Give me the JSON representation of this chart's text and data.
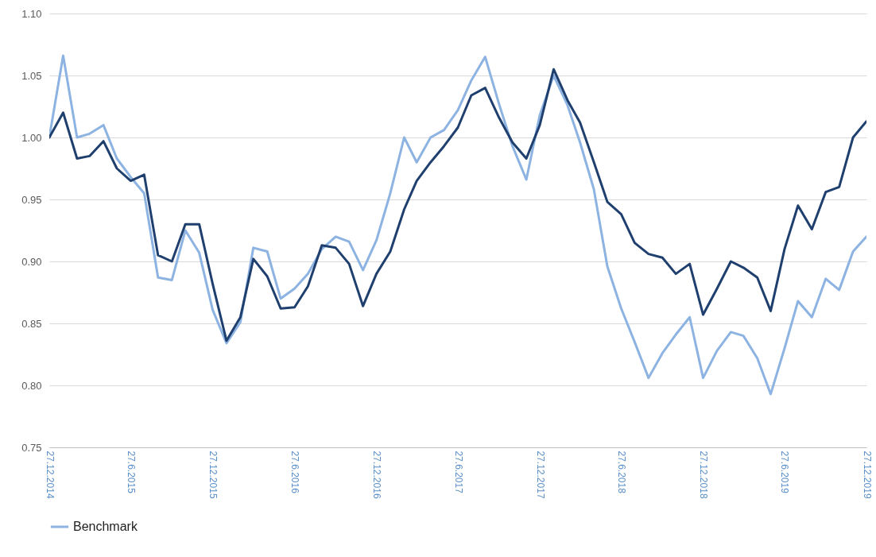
{
  "chart_data": {
    "type": "line",
    "x": [
      "2014-12-27",
      "2015-01-27",
      "2015-02-27",
      "2015-03-27",
      "2015-04-27",
      "2015-05-27",
      "2015-06-27",
      "2015-07-27",
      "2015-08-27",
      "2015-09-27",
      "2015-10-27",
      "2015-11-27",
      "2015-12-27",
      "2016-01-27",
      "2016-02-27",
      "2016-03-27",
      "2016-04-27",
      "2016-05-27",
      "2016-06-27",
      "2016-07-27",
      "2016-08-27",
      "2016-09-27",
      "2016-10-27",
      "2016-11-27",
      "2016-12-27",
      "2017-01-27",
      "2017-02-27",
      "2017-03-27",
      "2017-04-27",
      "2017-05-27",
      "2017-06-27",
      "2017-07-27",
      "2017-08-27",
      "2017-09-27",
      "2017-10-27",
      "2017-11-27",
      "2017-12-27",
      "2018-01-27",
      "2018-02-27",
      "2018-03-27",
      "2018-04-27",
      "2018-05-27",
      "2018-06-27",
      "2018-07-27",
      "2018-08-27",
      "2018-09-27",
      "2018-10-27",
      "2018-11-27",
      "2018-12-27",
      "2019-01-27",
      "2019-02-27",
      "2019-03-27",
      "2019-04-27",
      "2019-05-27",
      "2019-06-27",
      "2019-07-27",
      "2019-08-27",
      "2019-09-27",
      "2019-10-27",
      "2019-11-27",
      "2019-12-27"
    ],
    "series": [
      {
        "name": "Benchmark",
        "color": "#8db3e2",
        "values": [
          1.0,
          1.066,
          1.0,
          1.003,
          1.01,
          0.983,
          0.968,
          0.955,
          0.887,
          0.885,
          0.925,
          0.907,
          0.861,
          0.834,
          0.851,
          0.911,
          0.908,
          0.87,
          0.878,
          0.89,
          0.91,
          0.92,
          0.916,
          0.893,
          0.917,
          0.955,
          1.0,
          0.98,
          1.0,
          1.006,
          1.022,
          1.046,
          1.065,
          1.027,
          0.993,
          0.966,
          1.018,
          1.05,
          1.026,
          0.996,
          0.958,
          0.896,
          0.862,
          0.835,
          0.806,
          0.826,
          0.841,
          0.855,
          0.806,
          0.828,
          0.843,
          0.84,
          0.822,
          0.793,
          0.83,
          0.868,
          0.855,
          0.886,
          0.877,
          0.908,
          0.92
        ]
      },
      {
        "color": "#1f3f6e",
        "values": [
          1.0,
          1.02,
          0.983,
          0.985,
          0.997,
          0.975,
          0.965,
          0.97,
          0.905,
          0.9,
          0.93,
          0.93,
          0.882,
          0.836,
          0.855,
          0.902,
          0.888,
          0.862,
          0.863,
          0.88,
          0.913,
          0.911,
          0.898,
          0.864,
          0.89,
          0.908,
          0.942,
          0.965,
          0.98,
          0.993,
          1.008,
          1.034,
          1.04,
          1.016,
          0.996,
          0.983,
          1.01,
          1.055,
          1.03,
          1.012,
          0.98,
          0.948,
          0.938,
          0.915,
          0.906,
          0.903,
          0.89,
          0.898,
          0.857,
          0.878,
          0.9,
          0.895,
          0.887,
          0.86,
          0.91,
          0.945,
          0.926,
          0.956,
          0.96,
          1.0,
          1.013
        ]
      }
    ],
    "xlim": [
      "2014-12-27",
      "2019-12-27"
    ],
    "xticks": [
      {
        "value": "2014-12-27",
        "label": "27.12.2014"
      },
      {
        "value": "2015-06-27",
        "label": "27.6.2015"
      },
      {
        "value": "2015-12-27",
        "label": "27.12.2015"
      },
      {
        "value": "2016-06-27",
        "label": "27.6.2016"
      },
      {
        "value": "2016-12-27",
        "label": "27.12.2016"
      },
      {
        "value": "2017-06-27",
        "label": "27.6.2017"
      },
      {
        "value": "2017-12-27",
        "label": "27.12.2017"
      },
      {
        "value": "2018-06-27",
        "label": "27.6.2018"
      },
      {
        "value": "2018-12-27",
        "label": "27.12.2018"
      },
      {
        "value": "2019-06-27",
        "label": "27.6.2019"
      },
      {
        "value": "2019-12-27",
        "label": "27.12.2019"
      }
    ],
    "ylim": [
      0.75,
      1.1
    ],
    "yticks": [
      {
        "value": 0.75,
        "label": "0.75"
      },
      {
        "value": 0.8,
        "label": "0.80"
      },
      {
        "value": 0.85,
        "label": "0.85"
      },
      {
        "value": 0.9,
        "label": "0.90"
      },
      {
        "value": 0.95,
        "label": "0.95"
      },
      {
        "value": 1.0,
        "label": "1.00"
      },
      {
        "value": 1.05,
        "label": "1.05"
      },
      {
        "value": 1.1,
        "label": "1.10"
      }
    ],
    "grid": "y",
    "legend": "bottom"
  }
}
